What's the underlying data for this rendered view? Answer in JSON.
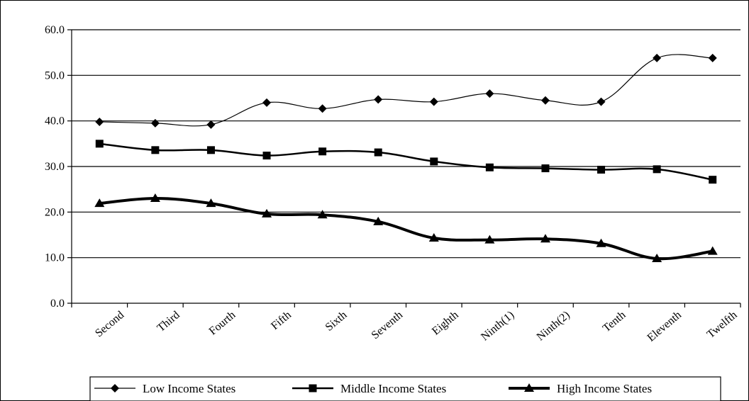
{
  "chart_data": {
    "type": "line",
    "title": "",
    "xlabel": "",
    "ylabel": "",
    "ylim": [
      0,
      60
    ],
    "yticks": [
      "0.0",
      "10.0",
      "20.0",
      "30.0",
      "40.0",
      "50.0",
      "60.0"
    ],
    "grid": "horizontal",
    "legend_position": "bottom",
    "categories": [
      "Second",
      "Third",
      "Fourth",
      "Fifth",
      "Sixth",
      "Seventh",
      "Eighth",
      "Ninth(1)",
      "Ninth(2)",
      "Tenth",
      "Eleventh",
      "Twelfth"
    ],
    "series": [
      {
        "name": "Low Income States",
        "marker": "diamond",
        "stroke_width": 1.2,
        "color": "#000000",
        "values": [
          39.8,
          39.5,
          39.2,
          44.0,
          42.7,
          44.7,
          44.2,
          46.0,
          44.5,
          44.2,
          53.8,
          53.8
        ]
      },
      {
        "name": "Middle Income States",
        "marker": "square",
        "stroke_width": 2.5,
        "color": "#000000",
        "values": [
          35.0,
          33.6,
          33.6,
          32.4,
          33.3,
          33.1,
          31.1,
          29.8,
          29.6,
          29.3,
          29.4,
          27.1
        ]
      },
      {
        "name": "High Income States",
        "marker": "triangle",
        "stroke_width": 4,
        "color": "#000000",
        "values": [
          21.9,
          23.0,
          21.9,
          19.6,
          19.4,
          17.9,
          14.3,
          13.9,
          14.1,
          13.1,
          9.8,
          11.4
        ]
      }
    ]
  }
}
